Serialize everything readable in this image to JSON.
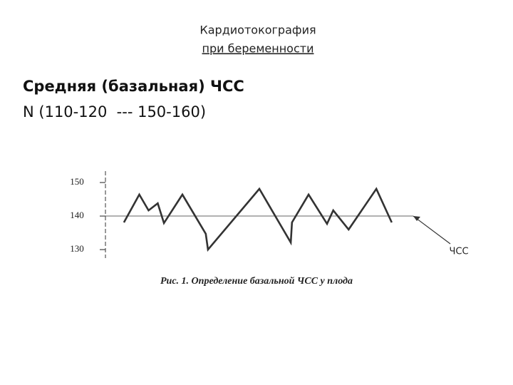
{
  "header": {
    "title": "Кардиотокография",
    "subtitle": "при беременности"
  },
  "heading": "Средняя (базальная) ЧСС",
  "norm": "N (110-120  --- 150-160)",
  "chart_data": {
    "type": "line",
    "caption": "Рис. 1. Определение базальной ЧСС у плода",
    "annotation": "ЧСС",
    "x": [
      6,
      11,
      14,
      17,
      19,
      25,
      32.6,
      33.3,
      50,
      60.2,
      60.6,
      66,
      72,
      74,
      79,
      88,
      93
    ],
    "xlim": [
      0,
      100
    ],
    "values": [
      138.1,
      146.4,
      141.7,
      143.8,
      137.9,
      146.4,
      134.7,
      130,
      148.1,
      132.1,
      138.1,
      146.4,
      137.7,
      141.7,
      136,
      148.1,
      138.1
    ],
    "baseline": 140,
    "ylim": [
      127.9,
      153.4
    ],
    "yticks": [
      130,
      140,
      150
    ],
    "color": "#333333"
  }
}
